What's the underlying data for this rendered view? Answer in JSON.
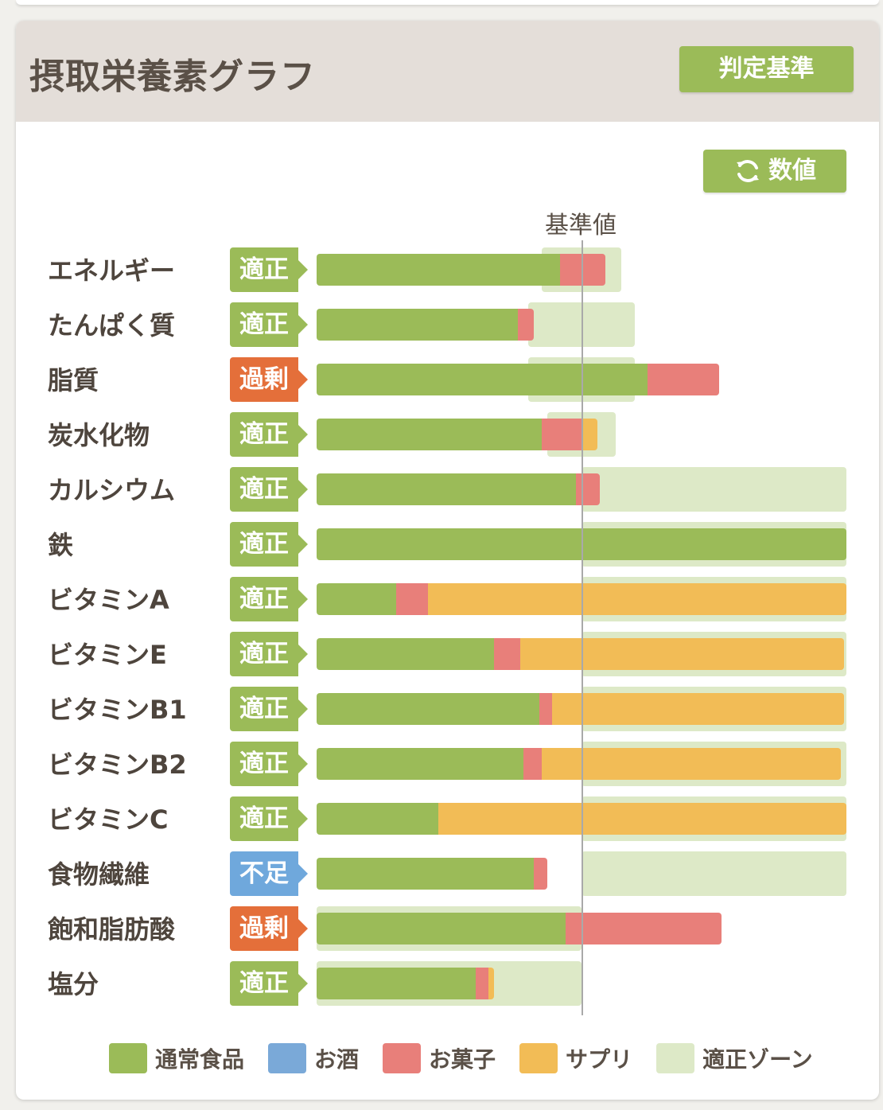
{
  "title": "摂取栄養素グラフ",
  "criteria_button": "判定基準",
  "value_button": "数値",
  "reference_label": "基準値",
  "colors": {
    "food": "#9bbb58",
    "alcohol": "#7aa9d8",
    "sweets": "#e87f7a",
    "supplement": "#f2bc56",
    "zone": "#dde9c7",
    "status_ok": "#9bbb58",
    "status_over": "#e46f3a",
    "status_low": "#6fa8dc"
  },
  "legend": [
    {
      "key": "food",
      "label": "通常食品"
    },
    {
      "key": "alcohol",
      "label": "お酒"
    },
    {
      "key": "sweets",
      "label": "お菓子"
    },
    {
      "key": "supplement",
      "label": "サプリ"
    },
    {
      "key": "zone",
      "label": "適正ゾーン"
    }
  ],
  "chart_data": {
    "type": "bar",
    "orientation": "horizontal",
    "stacked": true,
    "reference_value": 100,
    "unit": "% of 基準値",
    "xlim": [
      0,
      200
    ],
    "categories": [
      "エネルギー",
      "たんぱく質",
      "脂質",
      "炭水化物",
      "カルシウム",
      "鉄",
      "ビタミンA",
      "ビタミンE",
      "ビタミンB1",
      "ビタミンB2",
      "ビタミンC",
      "食物繊維",
      "飽和脂肪酸",
      "塩分"
    ],
    "status": [
      "適正",
      "適正",
      "過剰",
      "適正",
      "適正",
      "適正",
      "適正",
      "適正",
      "適正",
      "適正",
      "適正",
      "不足",
      "過剰",
      "適正"
    ],
    "status_kind": [
      "ok",
      "ok",
      "over",
      "ok",
      "ok",
      "ok",
      "ok",
      "ok",
      "ok",
      "ok",
      "ok",
      "low",
      "over",
      "ok"
    ],
    "series": [
      {
        "key": "food",
        "name": "通常食品",
        "values": [
          92,
          76,
          125,
          85,
          98,
          200,
          30,
          67,
          84,
          78,
          46,
          82,
          94,
          60
        ]
      },
      {
        "key": "alcohol",
        "name": "お酒",
        "values": [
          0,
          0,
          0,
          0,
          0,
          0,
          0,
          0,
          0,
          0,
          0,
          0,
          0,
          0
        ]
      },
      {
        "key": "sweets",
        "name": "お菓子",
        "values": [
          17,
          6,
          27,
          15,
          9,
          0,
          12,
          10,
          5,
          7,
          0,
          5,
          59,
          5
        ]
      },
      {
        "key": "supplement",
        "name": "サプリ",
        "values": [
          0,
          0,
          0,
          6,
          0,
          0,
          158,
          122,
          110,
          113,
          154,
          0,
          0,
          2
        ]
      }
    ],
    "optimal_zone": [
      [
        85,
        115
      ],
      [
        80,
        120
      ],
      [
        80,
        120
      ],
      [
        87,
        113
      ],
      [
        100,
        200
      ],
      [
        100,
        200
      ],
      [
        100,
        200
      ],
      [
        100,
        200
      ],
      [
        100,
        200
      ],
      [
        100,
        200
      ],
      [
        100,
        200
      ],
      [
        100,
        200
      ],
      [
        0,
        100
      ],
      [
        0,
        100
      ]
    ]
  }
}
